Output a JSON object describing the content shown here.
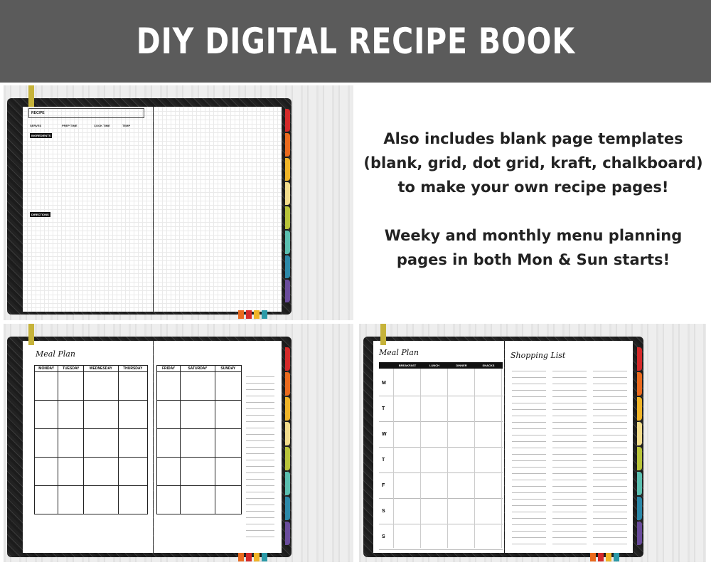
{
  "header": {
    "title": "DIY DIGITAL RECIPE BOOK"
  },
  "info": {
    "line1": "Also includes blank page templates (blank, grid, dot grid, kraft, chalkboard) to make your own recipe pages!",
    "line2": "Weeky and monthly menu planning pages in both Mon & Sun starts!"
  },
  "colors": {
    "header_bg": "#5b5b5b",
    "tabs": [
      "#d42a2a",
      "#ea6a1e",
      "#f0b428",
      "#f2dc8c",
      "#b9c43a",
      "#5bbfb0",
      "#2c88a8",
      "#6a4c9c"
    ],
    "bottom_tabs": [
      "#ea6a1e",
      "#d42a2a",
      "#f0b428",
      "#2c9aa8"
    ]
  },
  "recipe": {
    "title": "RECIPE",
    "serves": "SERVES",
    "prep": "PREP TIME",
    "cook": "COOK TIME",
    "temp": "TEMP",
    "ingredients": "INGREDIENTS",
    "directions": "DIRECTIONS"
  },
  "weekly": {
    "title": "Meal Plan",
    "days_left": [
      "MONDAY",
      "TUESDAY",
      "WEDNESDAY",
      "THURSDAY"
    ],
    "days_right": [
      "FRIDAY",
      "SATURDAY",
      "SUNDAY"
    ]
  },
  "daily": {
    "title": "Meal Plan",
    "meals": [
      "BREAKFAST",
      "LUNCH",
      "DINNER",
      "SNACKS"
    ],
    "days": [
      "M",
      "T",
      "W",
      "T",
      "F",
      "S",
      "S"
    ],
    "shopping_title": "Shopping List"
  }
}
